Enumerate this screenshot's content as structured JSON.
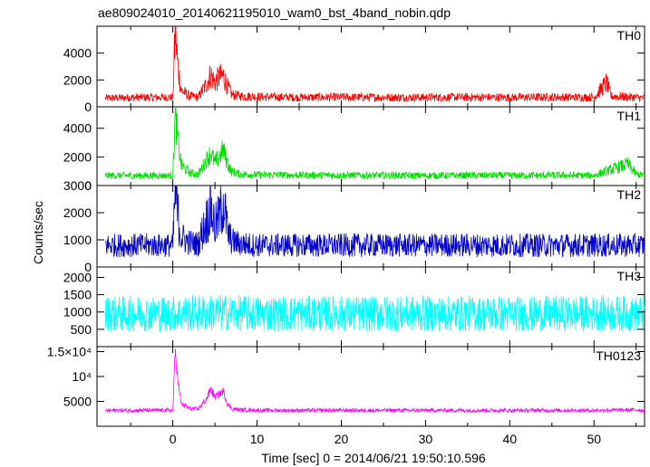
{
  "title": "ae809024010_20140621195010_wam0_bst_4band_nobin.qdp",
  "ylabel": "Counts/sec",
  "xlabel": "Time [sec] 0 = 2014/06/21 19:50:10.596",
  "chart_data": {
    "type": "line",
    "title": "ae809024010_20140621195010_wam0_bst_4band_nobin.qdp",
    "xlabel": "Time [sec] 0 = 2014/06/21 19:50:10.596",
    "ylabel": "Counts/sec",
    "xlim": [
      -9,
      56
    ],
    "x_ticks": [
      0,
      10,
      20,
      30,
      40,
      50
    ],
    "x_tick_labels": [
      "0",
      "10",
      "20",
      "30",
      "40",
      "50"
    ],
    "grid": false,
    "panels": [
      {
        "name": "TH0",
        "color": "#ff0000",
        "ylim": [
          0,
          6000
        ],
        "y_ticks": [
          0,
          2000,
          4000
        ],
        "y_tick_labels": [
          "0",
          "2000",
          "4000"
        ],
        "series": [
          {
            "name": "TH0",
            "x": [
              -8,
              -4,
              0,
              0.3,
              0.6,
              1,
              2,
              3,
              4,
              4.5,
              5,
              5.5,
              6,
              6.5,
              7,
              8,
              10,
              15,
              20,
              25,
              30,
              35,
              40,
              45,
              50,
              51.5,
              52,
              55,
              56
            ],
            "y": [
              650,
              700,
              700,
              5800,
              3000,
              1200,
              800,
              700,
              1700,
              2400,
              1800,
              2200,
              2300,
              1500,
              900,
              800,
              750,
              700,
              720,
              700,
              700,
              710,
              700,
              720,
              700,
              1800,
              800,
              700,
              650
            ]
          }
        ]
      },
      {
        "name": "TH1",
        "color": "#00dd00",
        "ylim": [
          0,
          5500
        ],
        "y_ticks": [
          0,
          2000,
          4000
        ],
        "y_tick_labels": [
          "0",
          "2000",
          "4000"
        ],
        "series": [
          {
            "name": "TH1",
            "x": [
              -8,
              -4,
              0,
              0.3,
              0.6,
              1,
              2,
              3,
              4,
              4.5,
              5,
              5.5,
              6,
              6.5,
              7,
              8,
              10,
              15,
              20,
              25,
              30,
              35,
              40,
              45,
              50,
              54,
              55,
              56
            ],
            "y": [
              700,
              700,
              700,
              5000,
              3200,
              1400,
              900,
              750,
              1800,
              2300,
              1600,
              2000,
              2500,
              1500,
              950,
              800,
              750,
              720,
              720,
              710,
              700,
              710,
              700,
              720,
              700,
              1500,
              800,
              700
            ]
          }
        ]
      },
      {
        "name": "TH2",
        "color": "#0000cc",
        "ylim": [
          0,
          3000
        ],
        "y_ticks": [
          0,
          1000,
          2000,
          3000
        ],
        "y_tick_labels": [
          "0",
          "1000",
          "2000",
          "3000"
        ],
        "series": [
          {
            "name": "TH2",
            "x": [
              -8,
              -4,
              0,
              0.3,
              0.6,
              1,
              2,
              3,
              4,
              4.5,
              5,
              5.5,
              6,
              6.5,
              7,
              8,
              10,
              15,
              20,
              25,
              30,
              35,
              40,
              45,
              50,
              55,
              56
            ],
            "y": [
              800,
              800,
              800,
              2900,
              1900,
              1100,
              900,
              850,
              1700,
              2200,
              1500,
              1800,
              2500,
              1300,
              950,
              850,
              800,
              800,
              800,
              800,
              800,
              800,
              800,
              800,
              800,
              800,
              800
            ]
          }
        ]
      },
      {
        "name": "TH3",
        "color": "#00ffff",
        "ylim": [
          0,
          2300
        ],
        "y_ticks": [
          500,
          1000,
          1500,
          2000
        ],
        "y_tick_labels": [
          "500",
          "1000",
          "1500",
          "2000"
        ],
        "series": [
          {
            "name": "TH3",
            "x": [
              -8,
              -4,
              0,
              5,
              10,
              15,
              20,
              25,
              30,
              35,
              40,
              45,
              50,
              55,
              56
            ],
            "y": [
              950,
              950,
              950,
              980,
              950,
              950,
              950,
              950,
              950,
              950,
              950,
              950,
              950,
              950,
              950
            ]
          }
        ]
      },
      {
        "name": "TH0123",
        "color": "#ff00ff",
        "ylim": [
          0,
          16000
        ],
        "y_ticks": [
          5000,
          10000,
          15000
        ],
        "y_tick_labels": [
          "5000",
          "10⁴",
          "1.5×10⁴"
        ],
        "series": [
          {
            "name": "TH0123",
            "x": [
              -8,
              -4,
              0,
              0.3,
              0.6,
              1,
              2,
              3,
              4,
              4.5,
              5,
              5.5,
              6,
              6.5,
              7,
              8,
              10,
              15,
              20,
              25,
              30,
              35,
              40,
              45,
              50,
              55,
              56
            ],
            "y": [
              3200,
              3200,
              3200,
              15500,
              9000,
              4500,
              3600,
              3400,
              5500,
              7500,
              5800,
              6500,
              7000,
              4500,
              3500,
              3300,
              3200,
              3200,
              3200,
              3200,
              3200,
              3200,
              3200,
              3200,
              3200,
              3300,
              3200
            ]
          }
        ]
      }
    ]
  }
}
